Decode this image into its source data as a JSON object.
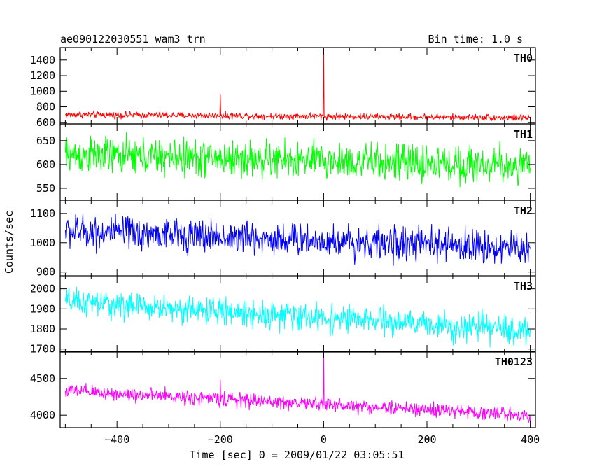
{
  "chart_data": {
    "type": "line",
    "title": "ae090122030551_wam3_trn",
    "bin_time_label": "Bin time: 1.0 s",
    "xlabel": "Time [sec] 0 = 2009/01/22 03:05:51",
    "ylabel": "Counts/sec",
    "xlim": [
      -510,
      410
    ],
    "x_ticks": [
      -400,
      -200,
      0,
      200,
      400
    ],
    "x_tick_labels": [
      "−400",
      "−200",
      "0",
      "200",
      "400"
    ],
    "panels": [
      {
        "name": "TH0",
        "color": "#ff0000",
        "ylim": [
          580,
          1560
        ],
        "y_ticks": [
          600,
          800,
          1000,
          1200,
          1400
        ],
        "y_tick_labels": [
          "600",
          "800",
          "1000",
          "1200",
          "1400"
        ],
        "series": {
          "x_start": -500,
          "x_end": 400,
          "mean_start": 700,
          "mean_end": 660,
          "noise": 32,
          "spikes": [
            {
              "x": -200,
              "y": 960
            },
            {
              "x": 0,
              "y": 1560
            }
          ]
        }
      },
      {
        "name": "TH1",
        "color": "#00ff00",
        "ylim": [
          525,
          685
        ],
        "y_ticks": [
          550,
          600,
          650
        ],
        "y_tick_labels": [
          "550",
          "600",
          "650"
        ],
        "series": {
          "x_start": -500,
          "x_end": 400,
          "mean_start": 620,
          "mean_end": 597,
          "noise": 30,
          "spikes": []
        }
      },
      {
        "name": "TH2",
        "color": "#0000ff",
        "ylim": [
          885,
          1145
        ],
        "y_ticks": [
          900,
          1000,
          1100
        ],
        "y_tick_labels": [
          "900",
          "1000",
          "1100"
        ],
        "series": {
          "x_start": -500,
          "x_end": 400,
          "mean_start": 1040,
          "mean_end": 980,
          "noise": 44,
          "spikes": []
        }
      },
      {
        "name": "TH3",
        "color": "#00ffff",
        "ylim": [
          1685,
          2065
        ],
        "y_ticks": [
          1700,
          1800,
          1900,
          2000
        ],
        "y_tick_labels": [
          "1700",
          "1800",
          "1900",
          "2000"
        ],
        "series": {
          "x_start": -500,
          "x_end": 400,
          "mean_start": 1935,
          "mean_end": 1790,
          "noise": 52,
          "spikes": []
        }
      },
      {
        "name": "TH0123",
        "color": "#ff00ff",
        "ylim": [
          3830,
          4870
        ],
        "y_ticks": [
          4000,
          4500
        ],
        "y_tick_labels": [
          "4000",
          "4500"
        ],
        "series": {
          "x_start": -500,
          "x_end": 400,
          "mean_start": 4330,
          "mean_end": 4000,
          "noise": 75,
          "spikes": [
            {
              "x": -200,
              "y": 4480
            },
            {
              "x": 0,
              "y": 4870
            }
          ]
        }
      }
    ]
  }
}
